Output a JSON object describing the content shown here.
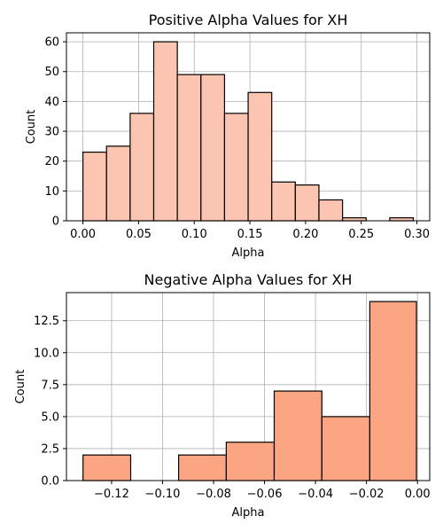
{
  "chart_data": [
    {
      "type": "bar",
      "title": "Positive Alpha Values for XH",
      "xlabel": "Alpha",
      "ylabel": "Count",
      "xlim": [
        -0.0148,
        0.3115
      ],
      "ylim": [
        0,
        63
      ],
      "grid": true,
      "bar_color": "#fcc5b1",
      "bins": [
        {
          "x0": 0.0,
          "x1": 0.0212,
          "count": 23
        },
        {
          "x0": 0.0212,
          "x1": 0.0424,
          "count": 25
        },
        {
          "x0": 0.0424,
          "x1": 0.0636,
          "count": 36
        },
        {
          "x0": 0.0636,
          "x1": 0.0848,
          "count": 60
        },
        {
          "x0": 0.0848,
          "x1": 0.106,
          "count": 49
        },
        {
          "x0": 0.106,
          "x1": 0.1272,
          "count": 49
        },
        {
          "x0": 0.1272,
          "x1": 0.1484,
          "count": 36
        },
        {
          "x0": 0.1484,
          "x1": 0.1696,
          "count": 43
        },
        {
          "x0": 0.1696,
          "x1": 0.1908,
          "count": 13
        },
        {
          "x0": 0.1908,
          "x1": 0.212,
          "count": 12
        },
        {
          "x0": 0.212,
          "x1": 0.2332,
          "count": 7
        },
        {
          "x0": 0.2332,
          "x1": 0.2544,
          "count": 1
        },
        {
          "x0": 0.2544,
          "x1": 0.2756,
          "count": 0
        },
        {
          "x0": 0.2756,
          "x1": 0.2968,
          "count": 1
        }
      ],
      "xticks": [
        0.0,
        0.05,
        0.1,
        0.15,
        0.2,
        0.25,
        0.3
      ],
      "xtick_labels": [
        "0.00",
        "0.05",
        "0.10",
        "0.15",
        "0.20",
        "0.25",
        "0.30"
      ],
      "yticks": [
        0,
        10,
        20,
        30,
        40,
        50,
        60
      ],
      "ytick_labels": [
        "0",
        "10",
        "20",
        "30",
        "40",
        "50",
        "60"
      ]
    },
    {
      "type": "bar",
      "title": "Negative Alpha Values for XH",
      "xlabel": "Alpha",
      "ylabel": "Count",
      "xlim": [
        -0.1377,
        0.0048
      ],
      "ylim": [
        0,
        14.7
      ],
      "grid": true,
      "bar_color": "#fca582",
      "bins": [
        {
          "x0": -0.1312,
          "x1": -0.1125,
          "count": 2
        },
        {
          "x0": -0.1125,
          "x1": -0.0937,
          "count": 0
        },
        {
          "x0": -0.0937,
          "x1": -0.075,
          "count": 2
        },
        {
          "x0": -0.075,
          "x1": -0.0562,
          "count": 3
        },
        {
          "x0": -0.0562,
          "x1": -0.0375,
          "count": 7
        },
        {
          "x0": -0.0375,
          "x1": -0.0187,
          "count": 5
        },
        {
          "x0": -0.0187,
          "x1": -0.0004,
          "count": 14
        }
      ],
      "xticks": [
        -0.12,
        -0.1,
        -0.08,
        -0.06,
        -0.04,
        -0.02,
        0.0
      ],
      "xtick_labels": [
        "−0.12",
        "−0.10",
        "−0.08",
        "−0.06",
        "−0.04",
        "−0.02",
        "0.00"
      ],
      "yticks": [
        0,
        2.5,
        5.0,
        7.5,
        10.0,
        12.5
      ],
      "ytick_labels": [
        "0.0",
        "2.5",
        "5.0",
        "7.5",
        "10.0",
        "12.5"
      ]
    }
  ]
}
